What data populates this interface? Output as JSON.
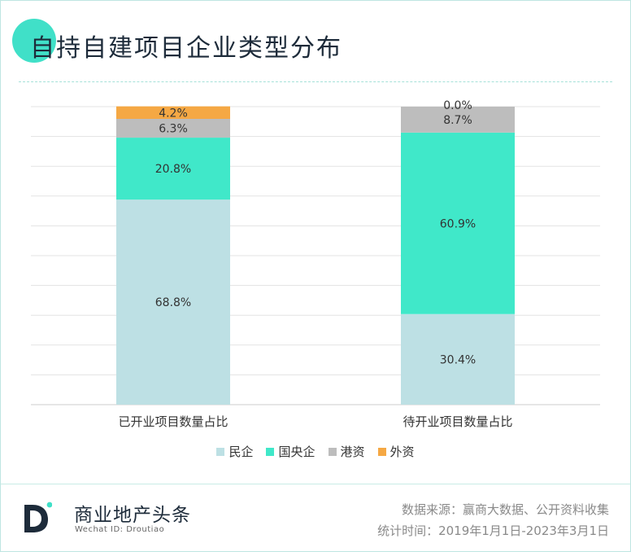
{
  "title": "自持自建项目企业类型分布",
  "chart_data": {
    "type": "bar",
    "stacked": true,
    "categories": [
      "已开业项目数量占比",
      "待开业项目数量占比"
    ],
    "series": [
      {
        "name": "民企",
        "values": [
          68.8,
          30.4
        ],
        "labels": [
          "68.8%",
          "30.4%"
        ],
        "color": "#bde0e4"
      },
      {
        "name": "国央企",
        "values": [
          20.8,
          60.9
        ],
        "labels": [
          "20.8%",
          "60.9%"
        ],
        "color": "#40e8c9"
      },
      {
        "name": "港资",
        "values": [
          6.3,
          8.7
        ],
        "labels": [
          "6.3%",
          "8.7%"
        ],
        "color": "#bdbdbd"
      },
      {
        "name": "外资",
        "values": [
          4.2,
          0.0
        ],
        "labels": [
          "4.2%",
          "0.0%"
        ],
        "color": "#f5a844"
      }
    ],
    "ylim": [
      0,
      100
    ],
    "grid": true,
    "legend_position": "bottom"
  },
  "footer": {
    "brand": "商业地产头条",
    "brand_sub": "Wechat ID: Droutiao",
    "source": "数据来源：赢商大数据、公开资料收集",
    "period": "统计时间：2019年1月1日-2023年3月1日"
  },
  "colors": {
    "accent": "#40e0c8",
    "title": "#1d2b3a"
  }
}
